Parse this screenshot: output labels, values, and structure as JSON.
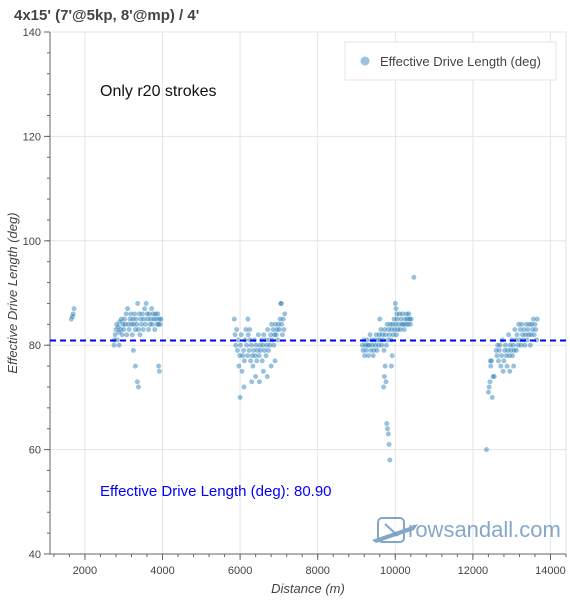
{
  "chart_data": {
    "type": "scatter",
    "title": "4x15' (7'@5kp, 8'@mp) / 4'",
    "xlabel": "Distance (m)",
    "ylabel": "Effective Drive Length (deg)",
    "xlim": [
      1100,
      14400
    ],
    "ylim": [
      40,
      140
    ],
    "xticks": [
      2000,
      4000,
      6000,
      8000,
      10000,
      12000,
      14000
    ],
    "yticks": [
      40,
      60,
      80,
      100,
      120,
      140
    ],
    "grid": true,
    "legend_position": "top-right",
    "legend": "Effective Drive Length (deg)",
    "annotation": "Only r20 strokes",
    "average": {
      "value": 80.9,
      "label": "Effective Drive Length (deg): 80.90"
    },
    "marker_color": "#1f77b4",
    "average_color": "#0000ff",
    "series": [
      {
        "name": "Effective Drive Length (deg)",
        "points": [
          [
            1650,
            85
          ],
          [
            1700,
            86
          ],
          [
            1720,
            87
          ],
          [
            1680,
            85.5
          ],
          [
            2750,
            80
          ],
          [
            2780,
            82
          ],
          [
            2800,
            83
          ],
          [
            2820,
            84
          ],
          [
            2840,
            81
          ],
          [
            2860,
            83.5
          ],
          [
            2880,
            82.5
          ],
          [
            2900,
            84.5
          ],
          [
            2920,
            83
          ],
          [
            2940,
            85
          ],
          [
            2960,
            82
          ],
          [
            2980,
            84
          ],
          [
            3000,
            83
          ],
          [
            3020,
            85
          ],
          [
            3040,
            84
          ],
          [
            3060,
            86
          ],
          [
            3080,
            82
          ],
          [
            3100,
            87
          ],
          [
            3120,
            84
          ],
          [
            3140,
            83
          ],
          [
            3160,
            85
          ],
          [
            3180,
            86
          ],
          [
            3200,
            84
          ],
          [
            3220,
            82
          ],
          [
            3240,
            85
          ],
          [
            3260,
            84
          ],
          [
            3280,
            86
          ],
          [
            3300,
            83
          ],
          [
            3320,
            85
          ],
          [
            3340,
            84
          ],
          [
            3360,
            88
          ],
          [
            3380,
            83
          ],
          [
            3400,
            86
          ],
          [
            3420,
            82
          ],
          [
            3440,
            85
          ],
          [
            3460,
            84
          ],
          [
            3480,
            86
          ],
          [
            3500,
            83
          ],
          [
            3520,
            85
          ],
          [
            3540,
            87
          ],
          [
            3560,
            84
          ],
          [
            3580,
            88
          ],
          [
            3600,
            86
          ],
          [
            3620,
            85
          ],
          [
            3640,
            83
          ],
          [
            3660,
            86
          ],
          [
            3680,
            84
          ],
          [
            3700,
            85
          ],
          [
            3720,
            87
          ],
          [
            3740,
            84
          ],
          [
            3760,
            86
          ],
          [
            3780,
            85
          ],
          [
            3800,
            83
          ],
          [
            3820,
            86
          ],
          [
            3840,
            85
          ],
          [
            3860,
            84
          ],
          [
            3880,
            86
          ],
          [
            3900,
            84
          ],
          [
            3920,
            85
          ],
          [
            3940,
            84
          ],
          [
            3960,
            85
          ],
          [
            3250,
            79
          ],
          [
            3300,
            76
          ],
          [
            3350,
            73
          ],
          [
            3380,
            72
          ],
          [
            3900,
            76
          ],
          [
            3920,
            75
          ],
          [
            2760,
            81
          ],
          [
            2880,
            80
          ],
          [
            5850,
            85
          ],
          [
            5870,
            82
          ],
          [
            5890,
            80
          ],
          [
            5910,
            83
          ],
          [
            5930,
            79
          ],
          [
            5950,
            81
          ],
          [
            5970,
            76
          ],
          [
            5990,
            78
          ],
          [
            6010,
            80
          ],
          [
            6030,
            82
          ],
          [
            6050,
            75
          ],
          [
            6070,
            78
          ],
          [
            6090,
            79
          ],
          [
            6110,
            77
          ],
          [
            6130,
            81
          ],
          [
            6150,
            83
          ],
          [
            6170,
            80
          ],
          [
            6190,
            78
          ],
          [
            6210,
            82
          ],
          [
            6230,
            79
          ],
          [
            6250,
            81
          ],
          [
            6270,
            77
          ],
          [
            6290,
            80
          ],
          [
            6310,
            78
          ],
          [
            6330,
            76
          ],
          [
            6350,
            79
          ],
          [
            6370,
            81
          ],
          [
            6390,
            78
          ],
          [
            6410,
            80
          ],
          [
            6430,
            77
          ],
          [
            6450,
            79
          ],
          [
            6470,
            82
          ],
          [
            6490,
            78
          ],
          [
            6510,
            80
          ],
          [
            6530,
            79
          ],
          [
            6550,
            81
          ],
          [
            6570,
            77
          ],
          [
            6590,
            80
          ],
          [
            6610,
            82
          ],
          [
            6630,
            79
          ],
          [
            6650,
            81
          ],
          [
            6670,
            78
          ],
          [
            6690,
            80
          ],
          [
            6710,
            83
          ],
          [
            6730,
            79
          ],
          [
            6750,
            81
          ],
          [
            6770,
            80
          ],
          [
            6790,
            82
          ],
          [
            6810,
            84
          ],
          [
            6830,
            81
          ],
          [
            6850,
            83
          ],
          [
            6870,
            80
          ],
          [
            6890,
            82
          ],
          [
            6910,
            84
          ],
          [
            6930,
            82
          ],
          [
            6950,
            83
          ],
          [
            6970,
            81
          ],
          [
            6990,
            84
          ],
          [
            7010,
            83
          ],
          [
            7030,
            85
          ],
          [
            7050,
            88
          ],
          [
            7070,
            84
          ],
          [
            7090,
            82
          ],
          [
            7110,
            85
          ],
          [
            7130,
            83
          ],
          [
            7150,
            86
          ],
          [
            6000,
            70
          ],
          [
            6100,
            72
          ],
          [
            6300,
            73
          ],
          [
            6400,
            74
          ],
          [
            6500,
            73
          ],
          [
            6600,
            75
          ],
          [
            6700,
            74
          ],
          [
            6800,
            76
          ],
          [
            6900,
            77
          ],
          [
            6200,
            85
          ],
          [
            6250,
            83
          ],
          [
            7060,
            88
          ],
          [
            9150,
            80
          ],
          [
            9170,
            79
          ],
          [
            9190,
            81
          ],
          [
            9210,
            78
          ],
          [
            9230,
            80
          ],
          [
            9250,
            79
          ],
          [
            9270,
            81
          ],
          [
            9290,
            80
          ],
          [
            9310,
            78
          ],
          [
            9330,
            80
          ],
          [
            9350,
            82
          ],
          [
            9370,
            79
          ],
          [
            9390,
            81
          ],
          [
            9410,
            80
          ],
          [
            9430,
            78
          ],
          [
            9450,
            79
          ],
          [
            9470,
            81
          ],
          [
            9490,
            80
          ],
          [
            9510,
            82
          ],
          [
            9530,
            79
          ],
          [
            9550,
            81
          ],
          [
            9570,
            80
          ],
          [
            9590,
            82
          ],
          [
            9610,
            81
          ],
          [
            9630,
            83
          ],
          [
            9650,
            80
          ],
          [
            9670,
            82
          ],
          [
            9690,
            81
          ],
          [
            9710,
            79
          ],
          [
            9730,
            83
          ],
          [
            9750,
            82
          ],
          [
            9770,
            80
          ],
          [
            9790,
            84
          ],
          [
            9810,
            81
          ],
          [
            9830,
            83
          ],
          [
            9850,
            82
          ],
          [
            9870,
            84
          ],
          [
            9890,
            81
          ],
          [
            9910,
            83
          ],
          [
            9930,
            84
          ],
          [
            9950,
            82
          ],
          [
            9970,
            85
          ],
          [
            9990,
            83
          ],
          [
            10010,
            84
          ],
          [
            10030,
            82
          ],
          [
            10050,
            85
          ],
          [
            10070,
            83
          ],
          [
            10090,
            84
          ],
          [
            10110,
            86
          ],
          [
            10130,
            83
          ],
          [
            10150,
            85
          ],
          [
            10170,
            84
          ],
          [
            10190,
            86
          ],
          [
            10210,
            84
          ],
          [
            10230,
            83
          ],
          [
            10250,
            85
          ],
          [
            10270,
            84
          ],
          [
            10290,
            86
          ],
          [
            10310,
            85
          ],
          [
            10330,
            84
          ],
          [
            10350,
            86
          ],
          [
            10370,
            85
          ],
          [
            10390,
            84
          ],
          [
            10410,
            85
          ],
          [
            9780,
            65
          ],
          [
            9800,
            64
          ],
          [
            9820,
            63
          ],
          [
            9840,
            61
          ],
          [
            9860,
            58
          ],
          [
            9700,
            72
          ],
          [
            9720,
            74
          ],
          [
            9740,
            76
          ],
          [
            9760,
            73
          ],
          [
            9900,
            76
          ],
          [
            9920,
            78
          ],
          [
            10000,
            88
          ],
          [
            10020,
            87
          ],
          [
            10040,
            86
          ],
          [
            9600,
            85
          ],
          [
            10480,
            93
          ],
          [
            12400,
            71
          ],
          [
            12420,
            72
          ],
          [
            12440,
            73
          ],
          [
            12460,
            76
          ],
          [
            12480,
            77
          ],
          [
            12500,
            70
          ],
          [
            12520,
            74
          ],
          [
            12600,
            79
          ],
          [
            12620,
            78
          ],
          [
            12640,
            80
          ],
          [
            12660,
            77
          ],
          [
            12680,
            79
          ],
          [
            12700,
            80
          ],
          [
            12720,
            76
          ],
          [
            12740,
            78
          ],
          [
            12760,
            81
          ],
          [
            12780,
            75
          ],
          [
            12800,
            77
          ],
          [
            12820,
            79
          ],
          [
            12840,
            80
          ],
          [
            12860,
            78
          ],
          [
            12880,
            76
          ],
          [
            12900,
            79
          ],
          [
            12920,
            82
          ],
          [
            12940,
            78
          ],
          [
            12960,
            80
          ],
          [
            12980,
            79
          ],
          [
            13000,
            81
          ],
          [
            13020,
            78
          ],
          [
            13040,
            80
          ],
          [
            13060,
            79
          ],
          [
            13080,
            83
          ],
          [
            13100,
            81
          ],
          [
            13120,
            79
          ],
          [
            13140,
            82
          ],
          [
            13160,
            80
          ],
          [
            13180,
            84
          ],
          [
            13200,
            81
          ],
          [
            13220,
            83
          ],
          [
            13240,
            80
          ],
          [
            13260,
            84
          ],
          [
            13280,
            82
          ],
          [
            13300,
            81
          ],
          [
            13320,
            83
          ],
          [
            13340,
            80
          ],
          [
            13360,
            82
          ],
          [
            13380,
            84
          ],
          [
            13400,
            81
          ],
          [
            13420,
            83
          ],
          [
            13440,
            82
          ],
          [
            13460,
            84
          ],
          [
            13480,
            80
          ],
          [
            13500,
            82
          ],
          [
            13520,
            84
          ],
          [
            13540,
            83
          ],
          [
            13560,
            85
          ],
          [
            13580,
            82
          ],
          [
            13600,
            84
          ],
          [
            13620,
            83
          ],
          [
            13640,
            81
          ],
          [
            13660,
            85
          ],
          [
            12350,
            60
          ],
          [
            12450,
            77
          ],
          [
            12550,
            74
          ],
          [
            12950,
            75
          ],
          [
            13050,
            76
          ]
        ]
      }
    ]
  },
  "watermark": {
    "brand": "rowsandall.com"
  }
}
